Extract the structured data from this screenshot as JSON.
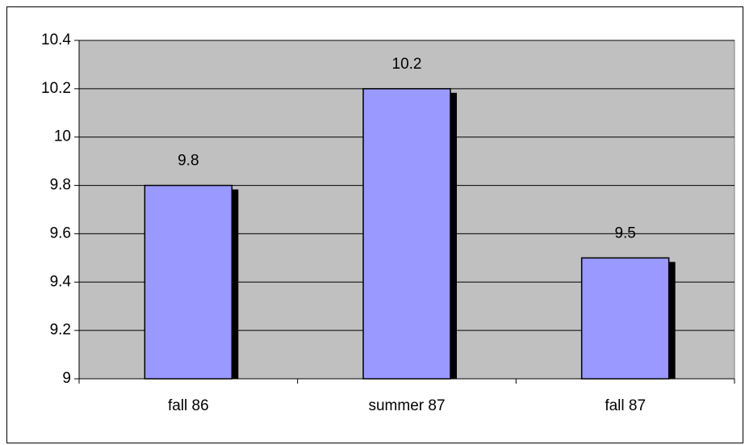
{
  "chart_data": {
    "type": "bar",
    "categories": [
      "fall 86",
      "summer 87",
      "fall 87"
    ],
    "values": [
      9.8,
      10.2,
      9.5
    ],
    "color": "#9999ff",
    "ylim": [
      9,
      10.4
    ],
    "yticks": [
      9,
      9.2,
      9.4,
      9.6,
      9.8,
      10,
      10.2,
      10.4
    ],
    "grid": true
  }
}
